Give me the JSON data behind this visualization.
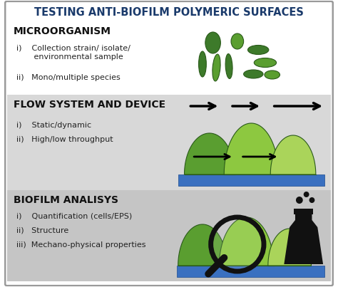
{
  "title": "TESTING ANTI-BIOFILM POLYMERIC SURFACES",
  "title_color": "#1a3a6b",
  "title_fontsize": 10.5,
  "section1_label": "MICROORGANISM",
  "section1_items": [
    "i)    Collection strain/ isolate/\n       environmental sample",
    "ii)   Mono/multiple species"
  ],
  "section2_label": "FLOW SYSTEM AND DEVICE",
  "section2_items": [
    "i)    Static/dynamic",
    "ii)   High/low throughput"
  ],
  "section3_label": "BIOFILM ANALISYS",
  "section3_items": [
    "i)    Quantification (cells/EPS)",
    "ii)   Structure",
    "iii)  Mechano-physical properties"
  ],
  "bg1": "#ffffff",
  "bg2": "#d8d8d8",
  "bg3": "#c5c5c5",
  "section_label_fontsize": 10,
  "section_label_color": "#111111",
  "item_fontsize": 8,
  "item_color": "#222222",
  "border_color": "#999999",
  "green_dark": "#3d7a2a",
  "green_mid": "#5a9e30",
  "green_light": "#8dc840",
  "green_lighter": "#aad45a",
  "blue_base": "#3a6ab0",
  "arrow_color": "#111111"
}
